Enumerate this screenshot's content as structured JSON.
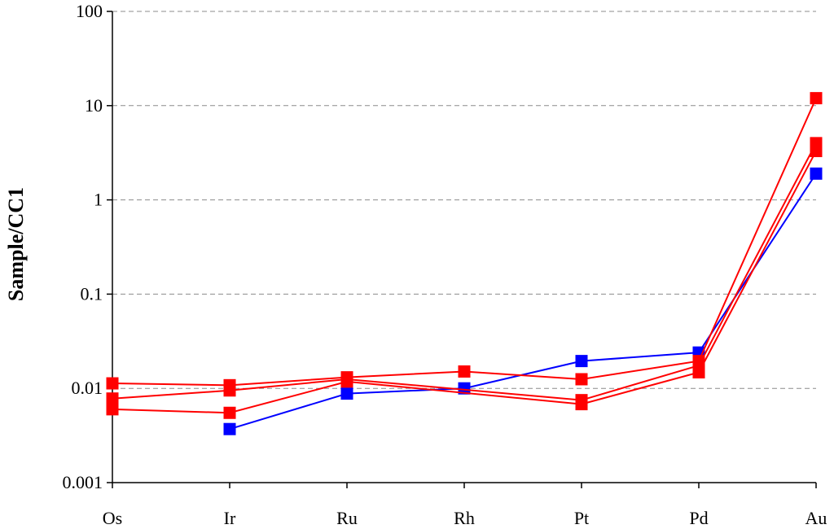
{
  "chart_data": {
    "type": "line",
    "title": "",
    "xlabel": "",
    "ylabel": "Sample/CC1",
    "categories": [
      "Os",
      "Ir",
      "Ru",
      "Rh",
      "Pt",
      "Pd",
      "Au"
    ],
    "y_scale": "log",
    "ylim": [
      0.001,
      100
    ],
    "y_ticks": [
      0.001,
      0.01,
      0.1,
      1,
      10,
      100
    ],
    "y_tick_labels": [
      "0.001",
      "0.01",
      "0.1",
      "1",
      "10",
      "100"
    ],
    "grid": "horizontal dashed",
    "legend": "none",
    "series": [
      {
        "color": "#0000ff",
        "values": [
          null,
          0.0037,
          0.0088,
          0.01,
          0.0195,
          0.024,
          1.9
        ]
      },
      {
        "color": "#ff0000",
        "values": [
          0.0113,
          0.0108,
          0.0131,
          0.0151,
          0.0125,
          0.0195,
          12
        ]
      },
      {
        "color": "#ff0000",
        "values": [
          0.0078,
          0.0095,
          0.0125,
          null,
          0.0075,
          0.0175,
          4
        ]
      },
      {
        "color": "#ff0000",
        "values": [
          0.006,
          0.0055,
          0.0118,
          null,
          0.0068,
          0.0148,
          3.3
        ]
      }
    ]
  }
}
